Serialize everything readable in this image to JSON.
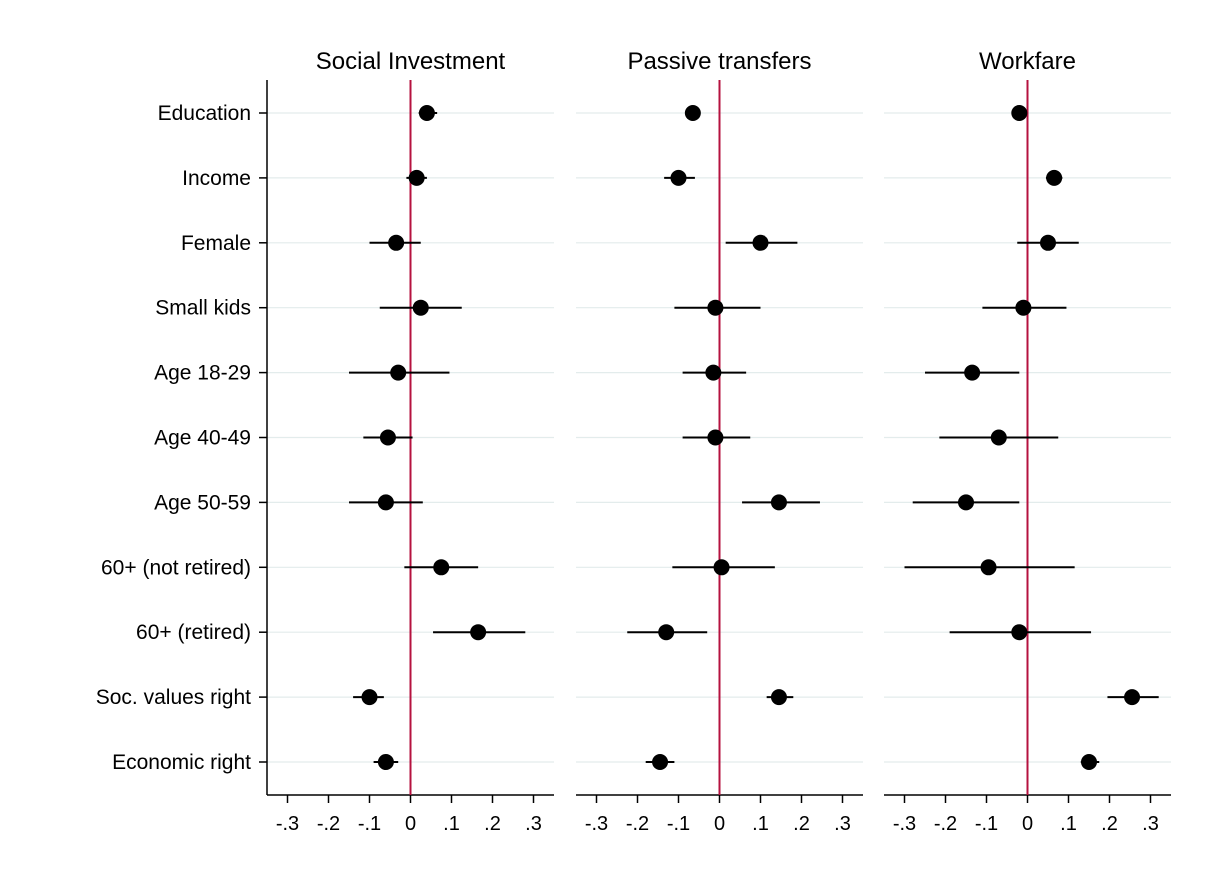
{
  "chart_data": {
    "type": "scatter",
    "categories": [
      "Education",
      "Income",
      "Female",
      "Small kids",
      "Age 18-29",
      "Age 40-49",
      "Age 50-59",
      "60+ (not retired)",
      "60+ (retired)",
      "Soc. values right",
      "Economic right"
    ],
    "x_ticks": [
      -0.3,
      -0.2,
      -0.1,
      0,
      0.1,
      0.2,
      0.3
    ],
    "x_tick_labels": [
      "-.3",
      "-.2",
      "-.1",
      "0",
      ".1",
      ".2",
      ".3"
    ],
    "xlim": [
      -0.35,
      0.35
    ],
    "reference_line": 0,
    "reference_color": "#b5123f",
    "grid": true,
    "panels": [
      {
        "title": "Social Investment",
        "estimates": [
          0.04,
          0.015,
          -0.035,
          0.025,
          -0.03,
          -0.055,
          -0.06,
          0.075,
          0.165,
          -0.1,
          -0.06
        ],
        "ci_low": [
          0.02,
          -0.01,
          -0.1,
          -0.075,
          -0.15,
          -0.115,
          -0.15,
          -0.015,
          0.055,
          -0.14,
          -0.09
        ],
        "ci_high": [
          0.065,
          0.04,
          0.025,
          0.125,
          0.095,
          0.005,
          0.03,
          0.165,
          0.28,
          -0.065,
          -0.03
        ]
      },
      {
        "title": "Passive transfers",
        "estimates": [
          -0.065,
          -0.1,
          0.1,
          -0.01,
          -0.015,
          -0.01,
          0.145,
          0.005,
          -0.13,
          0.145,
          -0.145
        ],
        "ci_low": [
          -0.075,
          -0.135,
          0.015,
          -0.11,
          -0.09,
          -0.09,
          0.055,
          -0.115,
          -0.225,
          0.115,
          -0.18
        ],
        "ci_high": [
          -0.06,
          -0.06,
          0.19,
          0.1,
          0.065,
          0.075,
          0.245,
          0.135,
          -0.03,
          0.18,
          -0.11
        ]
      },
      {
        "title": "Workfare",
        "estimates": [
          -0.02,
          0.065,
          0.05,
          -0.01,
          -0.135,
          -0.07,
          -0.15,
          -0.095,
          -0.02,
          0.255,
          0.15
        ],
        "ci_low": [
          -0.03,
          0.045,
          -0.025,
          -0.11,
          -0.25,
          -0.215,
          -0.28,
          -0.3,
          -0.19,
          0.195,
          0.13
        ],
        "ci_high": [
          -0.01,
          0.085,
          0.125,
          0.095,
          -0.02,
          0.075,
          -0.02,
          0.115,
          0.155,
          0.32,
          0.175
        ]
      }
    ]
  }
}
